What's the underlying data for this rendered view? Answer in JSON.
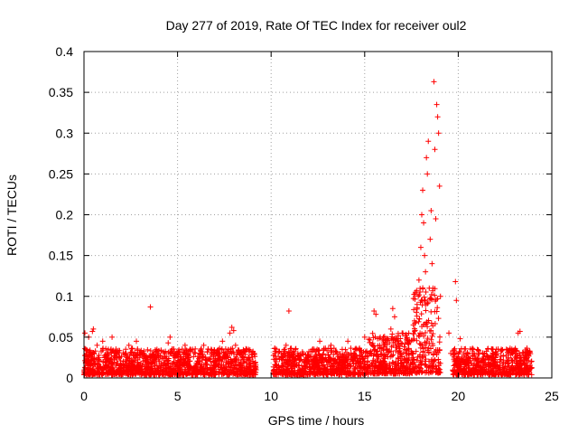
{
  "chart_data": {
    "type": "scatter",
    "title": "Day 277 of 2019, Rate Of TEC Index for receiver oul2",
    "xlabel": "GPS time / hours",
    "ylabel": "ROTI / TECUs",
    "xlim": [
      0,
      25
    ],
    "ylim": [
      0,
      0.4
    ],
    "x_ticks": [
      0,
      5,
      10,
      15,
      20,
      25
    ],
    "x_tick_labels": [
      "0",
      "5",
      "10",
      "15",
      "20",
      "25"
    ],
    "y_ticks": [
      0,
      0.05,
      0.1,
      0.15,
      0.2,
      0.25,
      0.3,
      0.35,
      0.4
    ],
    "y_tick_labels": [
      "0",
      "0.05",
      "0.1",
      "0.15",
      "0.2",
      "0.25",
      "0.3",
      "0.35",
      "0.4"
    ],
    "grid": true,
    "marker": "+",
    "color": "#ff0000",
    "series": [
      {
        "name": "ROTI",
        "points": [
          [
            0.05,
            0.055
          ],
          [
            0.1,
            0.035
          ],
          [
            0.15,
            0.02
          ],
          [
            0.2,
            0.012
          ],
          [
            0.25,
            0.05
          ],
          [
            0.3,
            0.028
          ],
          [
            0.35,
            0.015
          ],
          [
            0.4,
            0.008
          ],
          [
            0.45,
            0.057
          ],
          [
            0.5,
            0.06
          ],
          [
            0.55,
            0.03
          ],
          [
            0.6,
            0.018
          ],
          [
            0.7,
            0.04
          ],
          [
            0.8,
            0.022
          ],
          [
            0.9,
            0.012
          ],
          [
            1.0,
            0.045
          ],
          [
            1.1,
            0.025
          ],
          [
            1.2,
            0.015
          ],
          [
            1.3,
            0.035
          ],
          [
            1.4,
            0.02
          ],
          [
            1.5,
            0.05
          ],
          [
            1.6,
            0.01
          ],
          [
            1.7,
            0.03
          ],
          [
            1.8,
            0.018
          ],
          [
            1.9,
            0.025
          ],
          [
            2.0,
            0.012
          ],
          [
            2.2,
            0.03
          ],
          [
            2.4,
            0.04
          ],
          [
            2.6,
            0.02
          ],
          [
            2.8,
            0.045
          ],
          [
            3.0,
            0.015
          ],
          [
            3.2,
            0.03
          ],
          [
            3.4,
            0.025
          ],
          [
            3.55,
            0.087
          ],
          [
            3.7,
            0.02
          ],
          [
            3.9,
            0.035
          ],
          [
            4.1,
            0.015
          ],
          [
            4.3,
            0.03
          ],
          [
            4.5,
            0.043
          ],
          [
            4.6,
            0.05
          ],
          [
            4.8,
            0.02
          ],
          [
            5.0,
            0.03
          ],
          [
            5.2,
            0.015
          ],
          [
            5.4,
            0.04
          ],
          [
            5.6,
            0.025
          ],
          [
            5.8,
            0.035
          ],
          [
            6.0,
            0.018
          ],
          [
            6.2,
            0.03
          ],
          [
            6.4,
            0.04
          ],
          [
            6.6,
            0.022
          ],
          [
            6.8,
            0.035
          ],
          [
            7.0,
            0.015
          ],
          [
            7.2,
            0.03
          ],
          [
            7.4,
            0.045
          ],
          [
            7.6,
            0.025
          ],
          [
            7.8,
            0.055
          ],
          [
            7.9,
            0.062
          ],
          [
            8.0,
            0.058
          ],
          [
            8.1,
            0.04
          ],
          [
            8.3,
            0.03
          ],
          [
            8.5,
            0.02
          ],
          [
            8.7,
            0.035
          ],
          [
            8.9,
            0.015
          ],
          [
            9.1,
            0.03
          ],
          [
            9.2,
            0.01
          ],
          [
            10.2,
            0.03
          ],
          [
            10.4,
            0.015
          ],
          [
            10.6,
            0.025
          ],
          [
            10.8,
            0.04
          ],
          [
            10.95,
            0.082
          ],
          [
            11.1,
            0.02
          ],
          [
            11.3,
            0.035
          ],
          [
            11.5,
            0.015
          ],
          [
            11.7,
            0.03
          ],
          [
            12.0,
            0.02
          ],
          [
            12.3,
            0.035
          ],
          [
            12.6,
            0.045
          ],
          [
            12.9,
            0.025
          ],
          [
            13.2,
            0.04
          ],
          [
            13.5,
            0.02
          ],
          [
            13.8,
            0.035
          ],
          [
            14.1,
            0.045
          ],
          [
            14.4,
            0.025
          ],
          [
            14.7,
            0.035
          ],
          [
            15.0,
            0.05
          ],
          [
            15.3,
            0.03
          ],
          [
            15.5,
            0.082
          ],
          [
            15.6,
            0.078
          ],
          [
            15.8,
            0.04
          ],
          [
            16.0,
            0.05
          ],
          [
            16.2,
            0.035
          ],
          [
            16.4,
            0.06
          ],
          [
            16.5,
            0.085
          ],
          [
            16.6,
            0.075
          ],
          [
            16.8,
            0.045
          ],
          [
            17.0,
            0.055
          ],
          [
            17.2,
            0.03
          ],
          [
            17.4,
            0.045
          ],
          [
            17.6,
            0.065
          ],
          [
            17.8,
            0.09
          ],
          [
            17.9,
            0.12
          ],
          [
            18.0,
            0.16
          ],
          [
            18.05,
            0.2
          ],
          [
            18.1,
            0.23
          ],
          [
            18.15,
            0.19
          ],
          [
            18.2,
            0.15
          ],
          [
            18.25,
            0.13
          ],
          [
            18.3,
            0.27
          ],
          [
            18.35,
            0.25
          ],
          [
            18.4,
            0.29
          ],
          [
            18.45,
            0.11
          ],
          [
            18.5,
            0.17
          ],
          [
            18.55,
            0.205
          ],
          [
            18.6,
            0.14
          ],
          [
            18.65,
            0.11
          ],
          [
            18.7,
            0.363
          ],
          [
            18.75,
            0.28
          ],
          [
            18.8,
            0.195
          ],
          [
            18.85,
            0.335
          ],
          [
            18.9,
            0.32
          ],
          [
            18.95,
            0.3
          ],
          [
            19.0,
            0.235
          ],
          [
            19.05,
            0.1
          ],
          [
            19.5,
            0.055
          ],
          [
            19.6,
            0.03
          ],
          [
            19.8,
            0.02
          ],
          [
            19.85,
            0.118
          ],
          [
            19.9,
            0.095
          ],
          [
            20.1,
            0.048
          ],
          [
            20.3,
            0.03
          ],
          [
            20.5,
            0.02
          ],
          [
            20.8,
            0.035
          ],
          [
            21.1,
            0.02
          ],
          [
            21.4,
            0.03
          ],
          [
            21.7,
            0.015
          ],
          [
            22.0,
            0.025
          ],
          [
            22.3,
            0.035
          ],
          [
            22.6,
            0.02
          ],
          [
            22.9,
            0.03
          ],
          [
            23.2,
            0.055
          ],
          [
            23.3,
            0.057
          ],
          [
            23.5,
            0.025
          ],
          [
            23.7,
            0.015
          ],
          [
            23.9,
            0.02
          ]
        ]
      }
    ],
    "dense_bands": [
      {
        "x_start": 0.0,
        "x_end": 9.2,
        "y_floor": 0.004,
        "y_base": 0.03
      },
      {
        "x_start": 10.1,
        "x_end": 15.2,
        "y_floor": 0.004,
        "y_base": 0.03
      },
      {
        "x_start": 15.2,
        "x_end": 17.6,
        "y_floor": 0.005,
        "y_base": 0.045
      },
      {
        "x_start": 17.6,
        "x_end": 19.05,
        "y_floor": 0.006,
        "y_base": 0.09
      },
      {
        "x_start": 19.7,
        "x_end": 23.95,
        "y_floor": 0.004,
        "y_base": 0.03
      }
    ]
  }
}
